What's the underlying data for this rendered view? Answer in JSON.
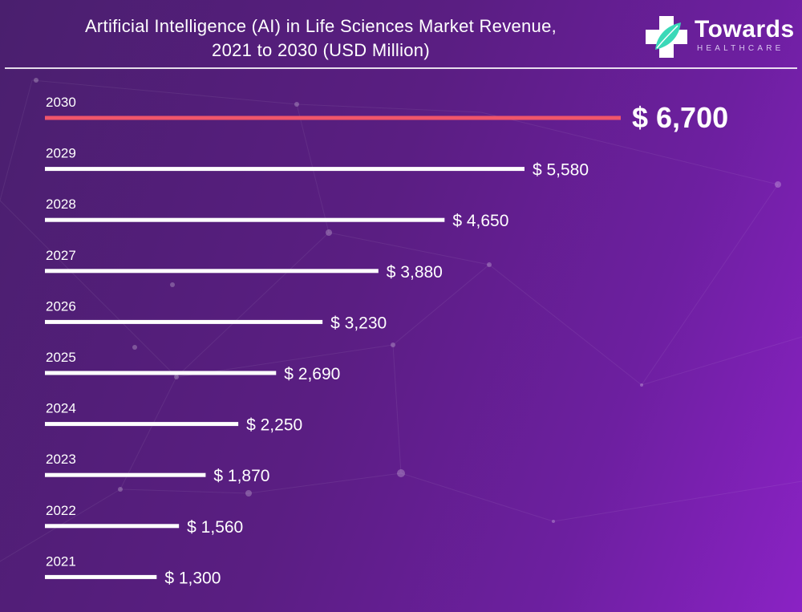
{
  "header": {
    "title_line1": "Artificial Intelligence (AI) in Life Sciences Market Revenue,",
    "title_line2": "2021 to 2030 (USD Million)"
  },
  "logo": {
    "name": "Towards",
    "sub": "HEALTHCARE"
  },
  "colors": {
    "bar_default": "#ffffff",
    "bar_highlight": "#f0556a",
    "text": "#ffffff",
    "logo_icon_teal": "#3ad9b8"
  },
  "chart_data": {
    "type": "bar",
    "orientation": "horizontal",
    "categories": [
      "2030",
      "2029",
      "2028",
      "2027",
      "2026",
      "2025",
      "2024",
      "2023",
      "2022",
      "2021"
    ],
    "values": [
      6700,
      5580,
      4650,
      3880,
      3230,
      2690,
      2250,
      1870,
      1560,
      1300
    ],
    "value_labels": [
      "$ 6,700",
      "$ 5,580",
      "$ 4,650",
      "$ 3,880",
      "$ 3,230",
      "$ 2,690",
      "$ 2,250",
      "$ 1,870",
      "$ 1,560",
      "$ 1,300"
    ],
    "highlight_category": "2030",
    "title": "Artificial Intelligence (AI) in Life Sciences Market Revenue, 2021 to 2030 (USD Million)",
    "xlabel": "",
    "ylabel": "",
    "xlim": [
      0,
      6700
    ],
    "grid": false,
    "legend": "none"
  }
}
